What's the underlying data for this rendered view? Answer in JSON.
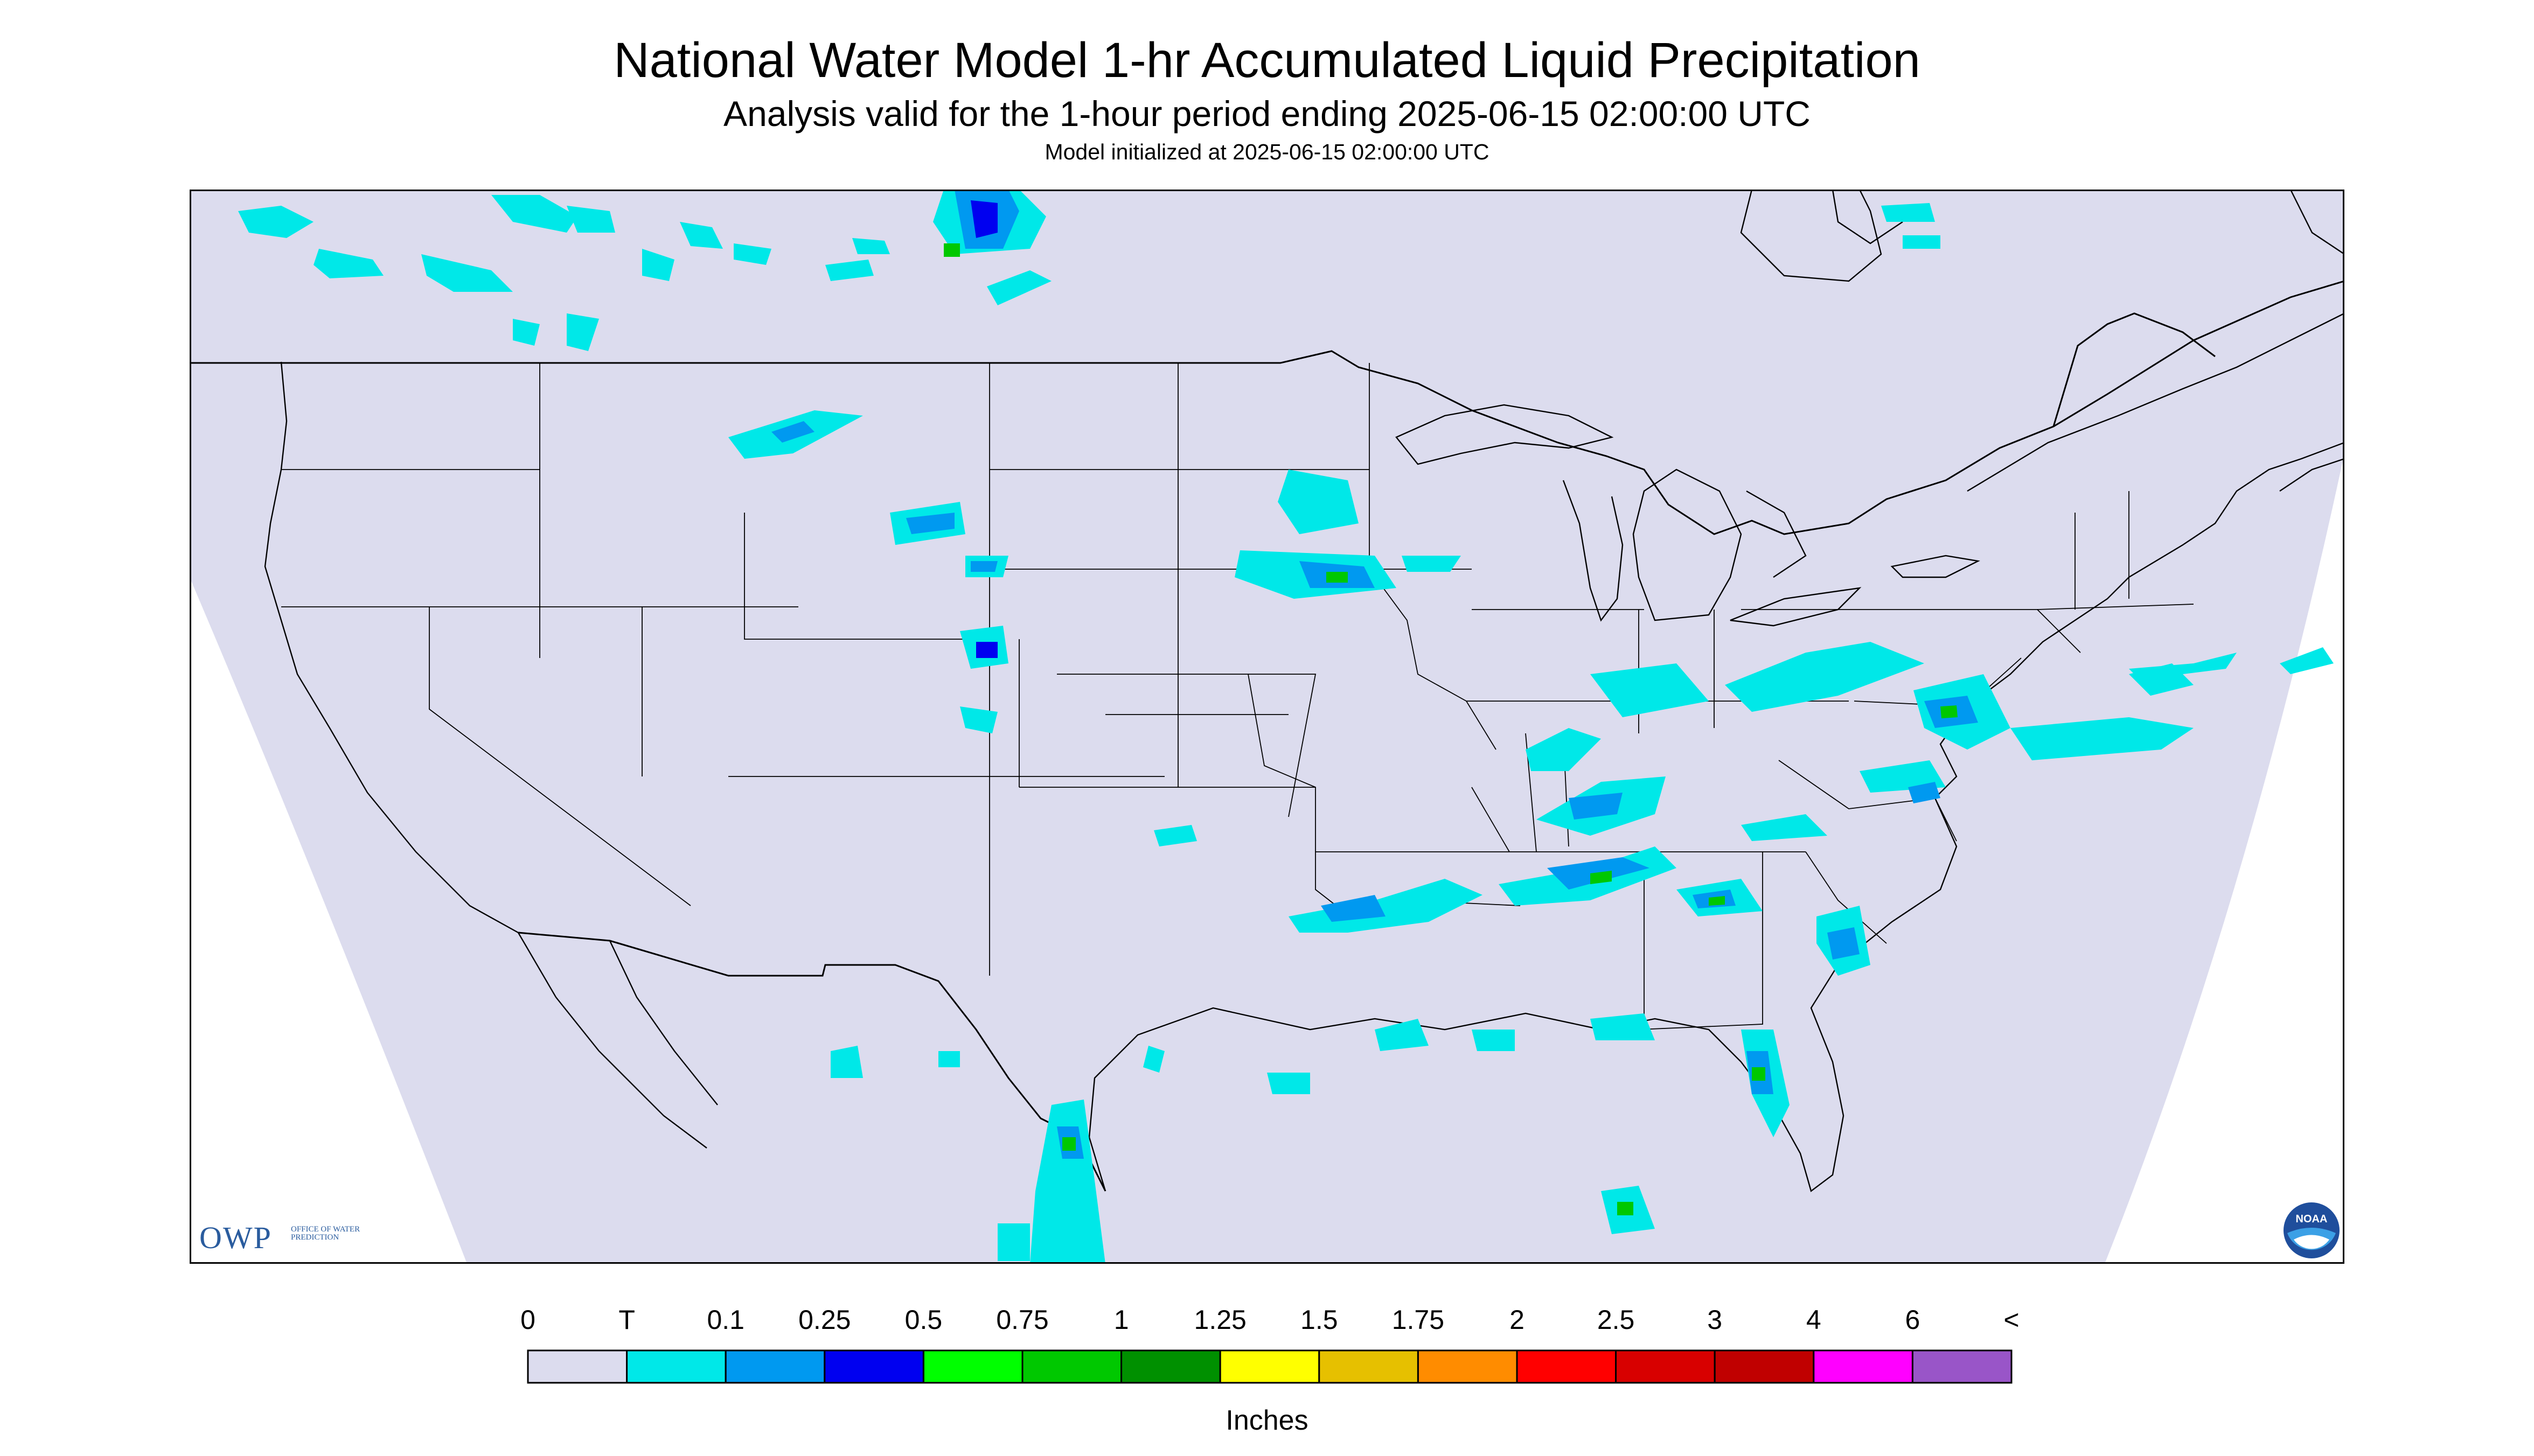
{
  "header": {
    "title": "National Water Model 1-hr Accumulated Liquid Precipitation",
    "subtitle": "Analysis valid for the 1-hour period ending 2025-06-15 02:00:00 UTC",
    "init": "Model initialized at 2025-06-15 02:00:00 UTC"
  },
  "logos": {
    "owp_main": "OWP",
    "owp_sub": "Office of Water Prediction",
    "noaa_text": "NOAA"
  },
  "legend": {
    "labels": [
      "0",
      "T",
      "0.1",
      "0.25",
      "0.5",
      "0.75",
      "1",
      "1.25",
      "1.5",
      "1.75",
      "2",
      "2.5",
      "3",
      "4",
      "6",
      "<"
    ],
    "colors": [
      "#dcdcee",
      "#00e8e8",
      "#0099f0",
      "#0000f0",
      "#00ff00",
      "#00c800",
      "#009000",
      "#ffff00",
      "#e6c000",
      "#ff8c00",
      "#ff0000",
      "#d80000",
      "#c00000",
      "#ff00ff",
      "#9955c8"
    ],
    "units": "Inches"
  },
  "map": {
    "background": "#dcdcee",
    "outside": "#ffffff",
    "boundary_color": "#000000",
    "precip_colors": {
      "trace": "#00e8e8",
      "light": "#0099f0",
      "moderate": "#0000f0",
      "heavy": "#00c800"
    }
  }
}
